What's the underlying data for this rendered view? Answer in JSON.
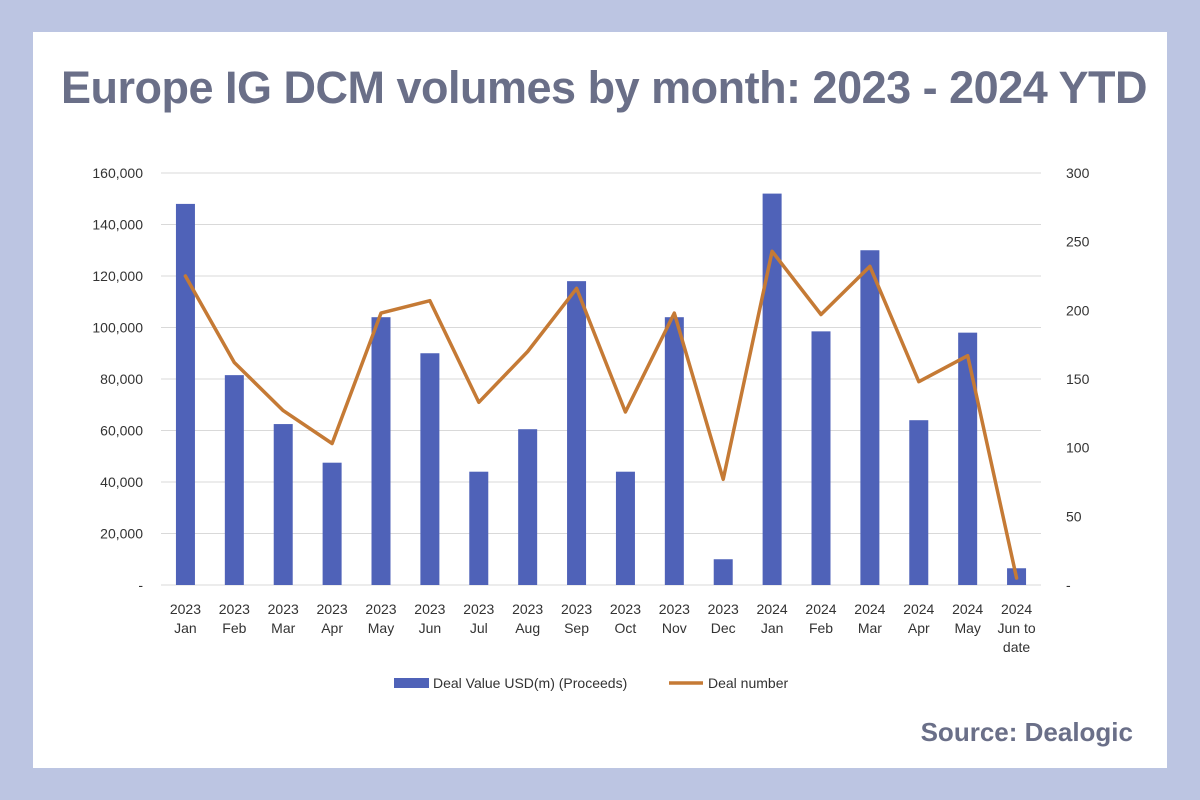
{
  "title": "Europe IG DCM volumes by month: 2023 - 2024 YTD",
  "source": "Source: Dealogic",
  "colors": {
    "background": "#bcc5e2",
    "card": "#ffffff",
    "bar": "#4f62b8",
    "line": "#c57a35",
    "text": "#6a6f88",
    "grid": "#d9d9d9",
    "axis_text": "#333333"
  },
  "chart_data": {
    "type": "bar",
    "categories": [
      [
        "2023",
        "Jan"
      ],
      [
        "2023",
        "Feb"
      ],
      [
        "2023",
        "Mar"
      ],
      [
        "2023",
        "Apr"
      ],
      [
        "2023",
        "May"
      ],
      [
        "2023",
        "Jun"
      ],
      [
        "2023",
        "Jul"
      ],
      [
        "2023",
        "Aug"
      ],
      [
        "2023",
        "Sep"
      ],
      [
        "2023",
        "Oct"
      ],
      [
        "2023",
        "Nov"
      ],
      [
        "2023",
        "Dec"
      ],
      [
        "2024",
        "Jan"
      ],
      [
        "2024",
        "Feb"
      ],
      [
        "2024",
        "Mar"
      ],
      [
        "2024",
        "Apr"
      ],
      [
        "2024",
        "May"
      ],
      [
        "2024",
        "Jun to",
        "date"
      ]
    ],
    "series": [
      {
        "name": "Deal Value USD(m) (Proceeds)",
        "type": "bar",
        "axis": "left",
        "values": [
          148000,
          81500,
          62500,
          47500,
          104000,
          90000,
          44000,
          60500,
          118000,
          44000,
          104000,
          10000,
          152000,
          98500,
          130000,
          64000,
          98000,
          6500
        ]
      },
      {
        "name": "Deal number",
        "type": "line",
        "axis": "right",
        "values": [
          225,
          162,
          127,
          103,
          198,
          207,
          133,
          170,
          216,
          126,
          198,
          77,
          243,
          197,
          232,
          148,
          167,
          5
        ]
      }
    ],
    "y_left": {
      "ylim": [
        0,
        160000
      ],
      "ticks": [
        "-",
        "20,000",
        "40,000",
        "60,000",
        "80,000",
        "100,000",
        "120,000",
        "140,000",
        "160,000"
      ]
    },
    "y_right": {
      "ylim": [
        0,
        300
      ],
      "ticks": [
        "-",
        "50",
        "100",
        "150",
        "200",
        "250",
        "300"
      ]
    },
    "grid": true,
    "legend": "bottom"
  }
}
